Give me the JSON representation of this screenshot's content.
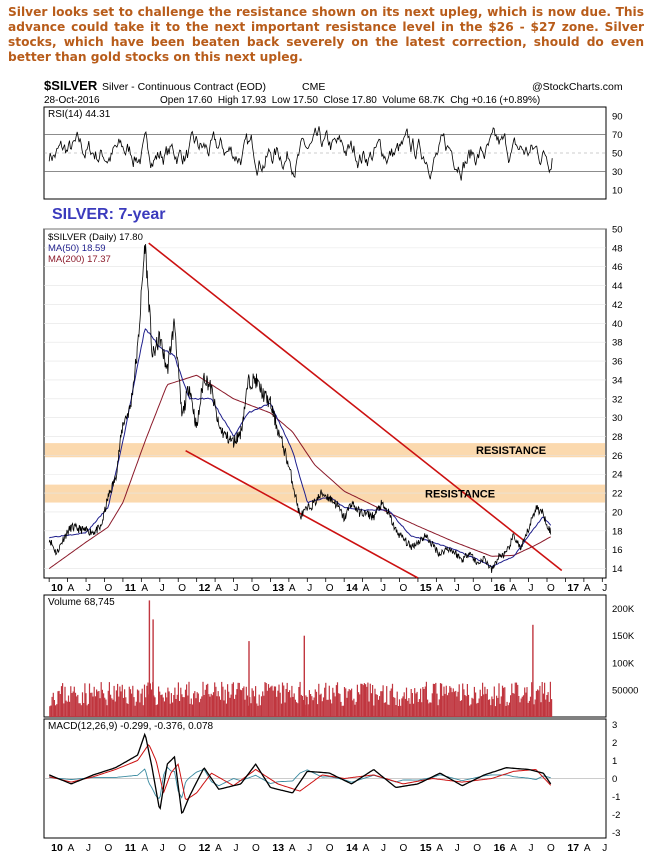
{
  "commentary": "Silver looks set to challenge the resistance shown on its next upleg, which is now due. This advance could take it to the next important resistance level in the $26 - $27 zone. Silver stocks, which have been beaten back severely on the latest correction, should do even better than gold stocks on this next upleg.",
  "header": {
    "symbol": "$SILVER",
    "description": "Silver - Continuous Contract (EOD)",
    "exchange": "CME",
    "brand": "@StockCharts.com",
    "date": "28-Oct-2016",
    "ohlc": "Open 17.60  High 17.93  Low 17.50  Close 17.80  Volume 68.7K  Chg +0.16 (+0.89%)"
  },
  "colors": {
    "commentary": "#b85c1a",
    "price": "#000000",
    "ma50": "#1f1f8c",
    "ma200": "#8b1a2a",
    "channel": "#cc1111",
    "resistance_band": "#fbd9ae",
    "volume": "#c0363f",
    "macd": "#000000",
    "macd_signal": "#cc1111",
    "macd_hist": "#3a8aa0",
    "chart_label": "#3b3bbd"
  },
  "chart_data": [
    {
      "type": "line",
      "panel": "rsi",
      "legend": "RSI(14) 44.31",
      "ylim": [
        0,
        100
      ],
      "y_ticks": [
        "90",
        "70",
        "50",
        "30",
        "10"
      ],
      "overbought": 70,
      "oversold": 30,
      "last_value": 44.31
    },
    {
      "type": "line",
      "panel": "price",
      "label": "SILVER: 7-year",
      "legend": [
        "$SILVER (Daily) 17.80",
        "MA(50) 18.59",
        "MA(200) 17.37"
      ],
      "ylim": [
        13,
        50
      ],
      "y_ticks": [
        "50",
        "48",
        "46",
        "44",
        "42",
        "40",
        "38",
        "36",
        "34",
        "32",
        "30",
        "28",
        "26",
        "24",
        "22",
        "20",
        "18",
        "16",
        "14"
      ],
      "x_ticks": [
        "10",
        "A",
        "J",
        "O",
        "11",
        "A",
        "J",
        "O",
        "12",
        "A",
        "J",
        "O",
        "13",
        "A",
        "J",
        "O",
        "14",
        "A",
        "J",
        "O",
        "15",
        "A",
        "J",
        "O",
        "16",
        "A",
        "J",
        "O",
        "17",
        "A",
        "J"
      ],
      "series": [
        {
          "name": "$SILVER (Daily)",
          "x": [
            2010.0,
            2010.1,
            2010.2,
            2010.3,
            2010.4,
            2010.5,
            2010.6,
            2010.7,
            2010.8,
            2010.9,
            2011.0,
            2011.1,
            2011.2,
            2011.3,
            2011.4,
            2011.5,
            2011.6,
            2011.7,
            2011.8,
            2011.9,
            2012.0,
            2012.1,
            2012.2,
            2012.3,
            2012.4,
            2012.5,
            2012.6,
            2012.7,
            2012.8,
            2012.9,
            2013.0,
            2013.1,
            2013.2,
            2013.3,
            2013.4,
            2013.5,
            2013.6,
            2013.7,
            2013.8,
            2013.9,
            2014.0,
            2014.1,
            2014.2,
            2014.3,
            2014.4,
            2014.5,
            2014.6,
            2014.7,
            2014.8,
            2014.9,
            2015.0,
            2015.1,
            2015.2,
            2015.3,
            2015.4,
            2015.5,
            2015.6,
            2015.7,
            2015.8,
            2015.9,
            2016.0,
            2016.1,
            2016.2,
            2016.3,
            2016.4,
            2016.5,
            2016.6,
            2016.7,
            2016.8
          ],
          "values": [
            17.2,
            15.6,
            17.3,
            18.4,
            18.2,
            18.0,
            17.9,
            18.3,
            21.6,
            23.6,
            29.4,
            31.0,
            37.3,
            48.6,
            36.4,
            38.5,
            35.0,
            40.2,
            30.0,
            33.5,
            28.8,
            34.5,
            33.0,
            29.0,
            28.0,
            27.4,
            28.5,
            33.8,
            34.0,
            32.5,
            31.5,
            28.7,
            26.3,
            23.2,
            19.5,
            20.3,
            21.0,
            22.0,
            21.5,
            20.8,
            19.3,
            21.0,
            20.0,
            19.8,
            19.5,
            20.8,
            19.9,
            18.0,
            17.2,
            16.3,
            16.8,
            17.5,
            16.5,
            15.5,
            16.2,
            15.7,
            14.9,
            15.8,
            14.5,
            15.1,
            13.8,
            15.3,
            15.6,
            17.5,
            16.0,
            18.2,
            20.5,
            19.8,
            17.8
          ]
        },
        {
          "name": "MA(50)",
          "x": [
            2010.0,
            2010.5,
            2010.8,
            2011.0,
            2011.3,
            2011.5,
            2011.7,
            2011.9,
            2012.2,
            2012.5,
            2012.7,
            2013.0,
            2013.3,
            2013.5,
            2013.8,
            2014.0,
            2014.3,
            2014.6,
            2014.9,
            2015.2,
            2015.5,
            2015.8,
            2016.0,
            2016.3,
            2016.5,
            2016.7,
            2016.8
          ],
          "values": [
            17.3,
            17.8,
            20.5,
            27.5,
            39.5,
            37.5,
            36.5,
            32.0,
            32.0,
            28.0,
            30.5,
            31.5,
            26.5,
            21.0,
            21.6,
            20.5,
            20.2,
            20.2,
            17.5,
            16.8,
            16.0,
            15.0,
            14.2,
            15.3,
            17.5,
            19.5,
            18.59
          ]
        },
        {
          "name": "MA(200)",
          "x": [
            2010.0,
            2010.5,
            2010.8,
            2011.0,
            2011.3,
            2011.6,
            2012.0,
            2012.5,
            2013.0,
            2013.3,
            2013.6,
            2014.0,
            2014.5,
            2015.0,
            2015.5,
            2016.0,
            2016.3,
            2016.6,
            2016.8
          ],
          "values": [
            14.0,
            16.8,
            18.4,
            21.0,
            27.5,
            33.5,
            34.5,
            32.0,
            30.5,
            28.5,
            25.0,
            22.2,
            20.3,
            18.5,
            16.8,
            15.3,
            15.4,
            16.5,
            17.37
          ]
        }
      ],
      "channel": {
        "upper": {
          "x": [
            2011.35,
            2016.95
          ],
          "values": [
            48.5,
            13.8
          ]
        },
        "lower": {
          "x": [
            2011.85,
            2015.0
          ],
          "values": [
            26.5,
            13.0
          ]
        }
      },
      "resistance_zones": [
        {
          "label": "RESISTANCE",
          "low": 25.8,
          "high": 27.3
        },
        {
          "label": "RESISTANCE",
          "low": 21.0,
          "high": 22.9
        }
      ]
    },
    {
      "type": "bar",
      "panel": "volume",
      "legend": "Volume 68,745",
      "y_ticks": [
        "200K",
        "150K",
        "100K",
        "50000"
      ],
      "spikes": {
        "x": [
          2011.35,
          2011.4,
          2012.7,
          2013.45,
          2016.55
        ],
        "values": [
          215000,
          180000,
          140000,
          150000,
          170000
        ]
      },
      "last_value": 68745
    },
    {
      "type": "line",
      "panel": "macd",
      "legend": "MACD(12,26,9) -0.299, -0.376, 0.078",
      "ylim": [
        -3,
        3
      ],
      "y_ticks": [
        "3",
        "2",
        "1",
        "0",
        "-1",
        "-2",
        "-3"
      ],
      "series": [
        {
          "name": "MACD",
          "x": [
            2010.0,
            2010.3,
            2010.6,
            2010.9,
            2011.2,
            2011.3,
            2011.4,
            2011.5,
            2011.6,
            2011.7,
            2011.8,
            2011.9,
            2012.1,
            2012.3,
            2012.6,
            2012.8,
            2013.0,
            2013.3,
            2013.5,
            2013.8,
            2014.1,
            2014.4,
            2014.7,
            2015.0,
            2015.3,
            2015.6,
            2015.9,
            2016.2,
            2016.5,
            2016.7,
            2016.8
          ],
          "values": [
            0.2,
            -0.3,
            0.2,
            0.6,
            1.3,
            2.5,
            0.5,
            -1.8,
            0.8,
            1.2,
            -2.0,
            -1.0,
            0.6,
            -0.6,
            -0.3,
            0.8,
            -0.5,
            -0.8,
            0.4,
            0.3,
            -0.3,
            0.5,
            -0.5,
            -0.3,
            0.3,
            -0.4,
            0.2,
            0.6,
            0.5,
            0.3,
            -0.299
          ]
        },
        {
          "name": "Signal",
          "x": [
            2010.0,
            2010.3,
            2010.6,
            2010.9,
            2011.2,
            2011.35,
            2011.45,
            2011.55,
            2011.65,
            2011.75,
            2011.85,
            2012.0,
            2012.2,
            2012.5,
            2012.8,
            2013.1,
            2013.4,
            2013.7,
            2014.0,
            2014.4,
            2014.8,
            2015.2,
            2015.6,
            2016.0,
            2016.3,
            2016.6,
            2016.8
          ],
          "values": [
            0.1,
            -0.2,
            0.1,
            0.5,
            1.0,
            1.9,
            1.0,
            -0.8,
            0.3,
            0.8,
            -1.2,
            -0.8,
            0.3,
            -0.4,
            0.5,
            -0.3,
            -0.7,
            0.2,
            0.0,
            0.2,
            -0.3,
            0.0,
            -0.2,
            0.0,
            0.4,
            0.5,
            -0.376
          ]
        }
      ]
    }
  ]
}
